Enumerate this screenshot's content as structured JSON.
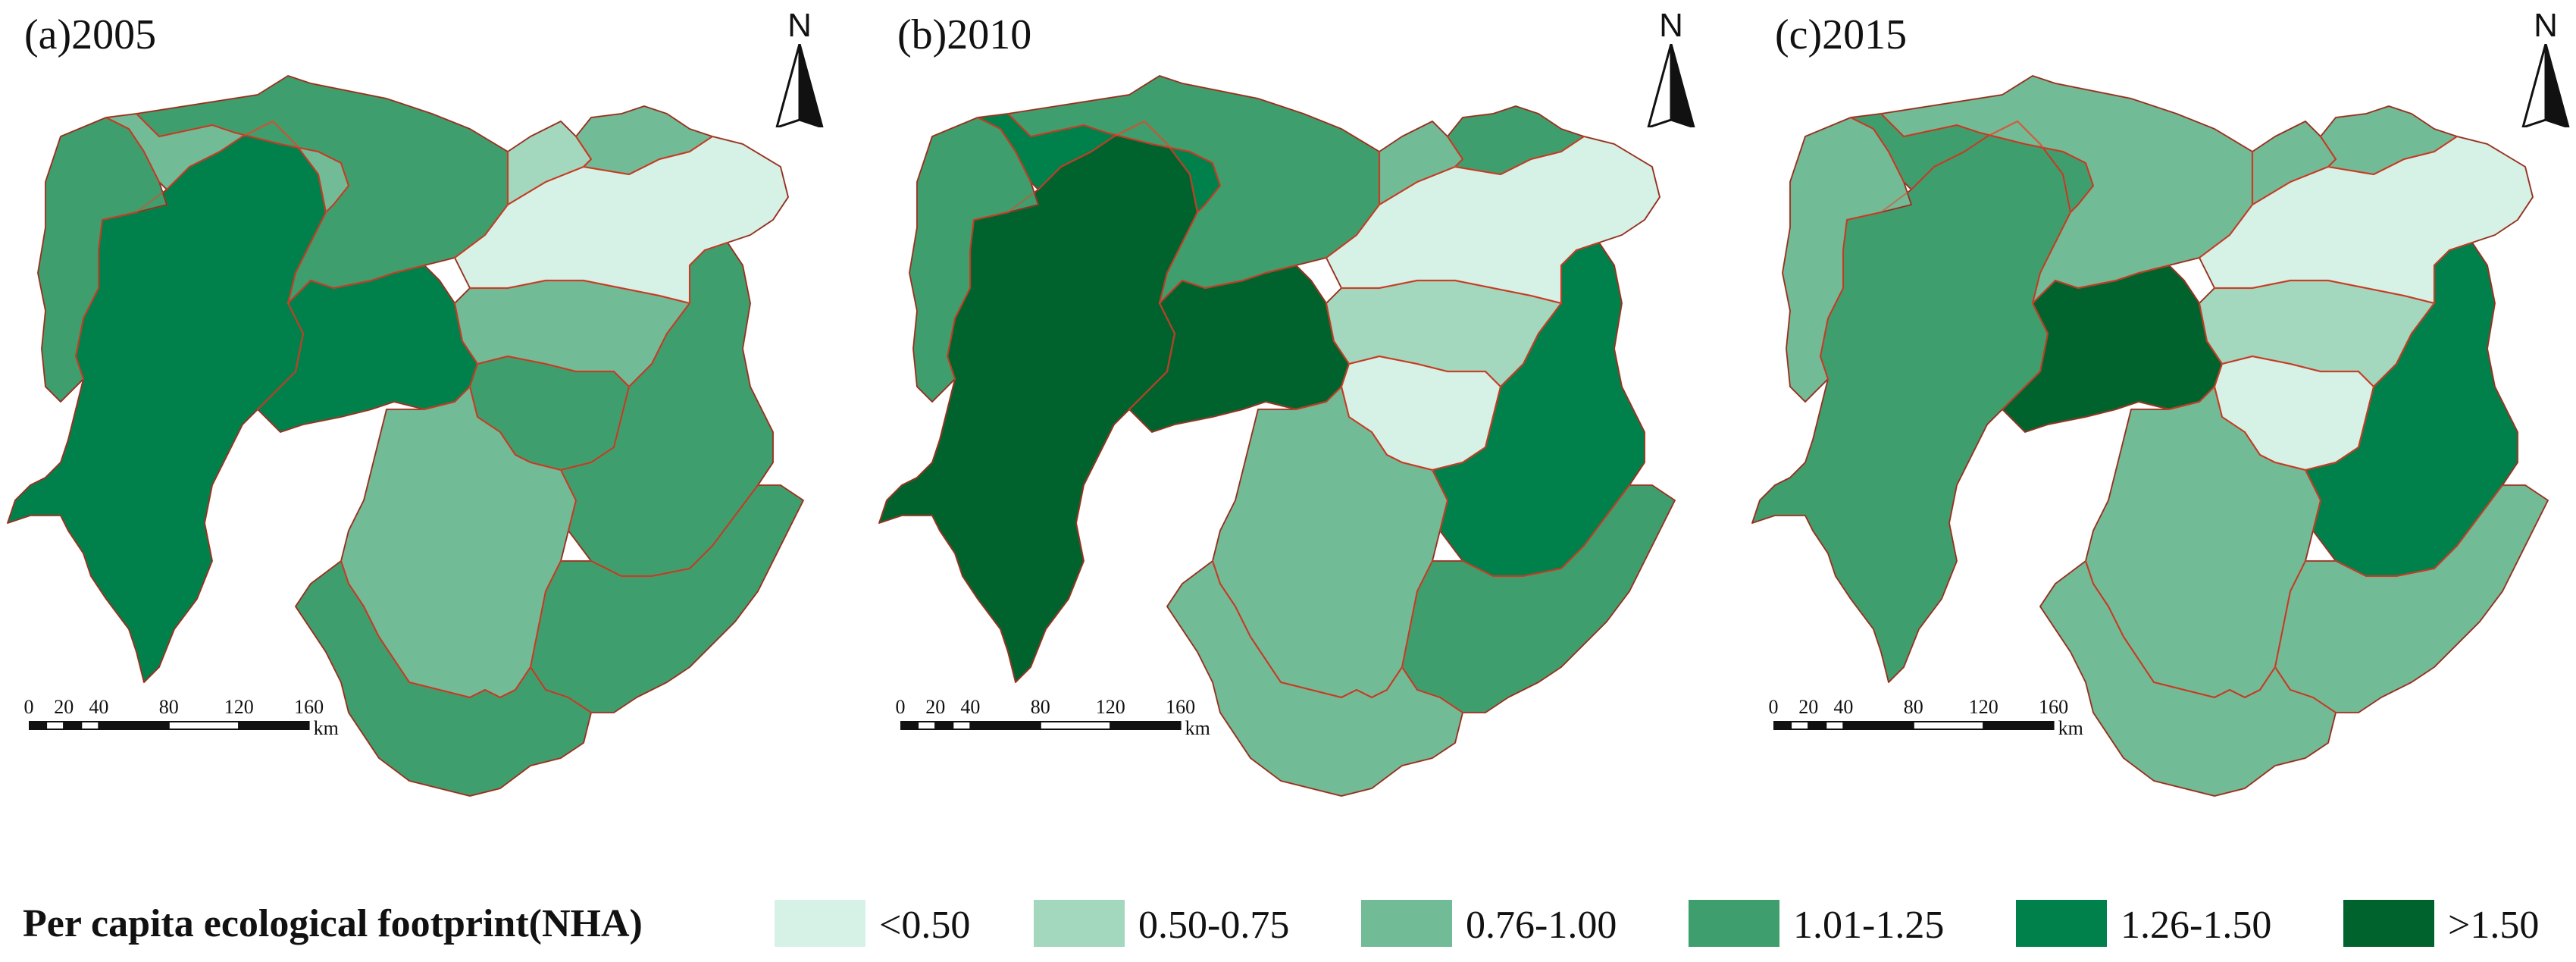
{
  "figure": {
    "panels": [
      {
        "title": "(a)2005",
        "north": "N",
        "year": "2005",
        "regions": [
          "c5",
          "c4",
          "c3",
          "c4",
          "c5",
          "c4",
          "c3",
          "c1",
          "c2",
          "c3",
          "c3",
          "c4",
          "c4",
          "c4"
        ]
      },
      {
        "title": "(b)2010",
        "north": "N",
        "year": "2010",
        "regions": [
          "c6",
          "c4",
          "c5",
          "c4",
          "c6",
          "c1",
          "c2",
          "c1",
          "c3",
          "c4",
          "c3",
          "c5",
          "c4",
          "c3"
        ]
      },
      {
        "title": "(c)2015",
        "north": "N",
        "year": "2015",
        "regions": [
          "c4",
          "c3",
          "c4",
          "c3",
          "c6",
          "c1",
          "c2",
          "c1",
          "c3",
          "c3",
          "c3",
          "c5",
          "c3",
          "c3"
        ]
      }
    ],
    "scale_bar": {
      "ticks": [
        "0",
        "20",
        "40",
        "80",
        "120",
        "160"
      ],
      "unit": "km"
    }
  },
  "legend": {
    "title": "Per capita ecological footprint(NHA)",
    "classes": [
      {
        "label": "<0.50",
        "color": "#d6f2e6"
      },
      {
        "label": "0.50-0.75",
        "color": "#a3d8bf"
      },
      {
        "label": "0.76-1.00",
        "color": "#72bb97"
      },
      {
        "label": "1.01-1.25",
        "color": "#3f9e6d"
      },
      {
        "label": "1.26-1.50",
        "color": "#00804a"
      },
      {
        "label": ">1.50",
        "color": "#00632e"
      }
    ]
  },
  "colors": {
    "boundary": "#e8452a",
    "internal_border": "#1a1a1a"
  }
}
